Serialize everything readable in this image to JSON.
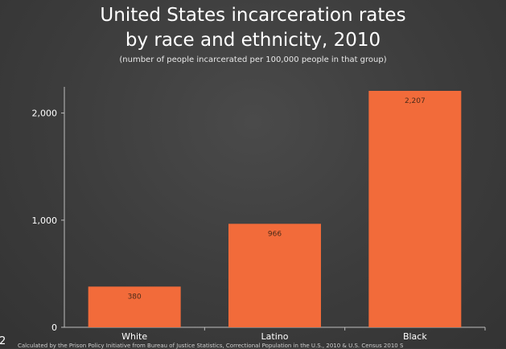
{
  "page_number": "2",
  "source_note": "Calculated by the Prison Policy Initiative from Bureau of Justice Statistics, Correctional Population in the U.S., 2010 & U.S. Census 2010 S",
  "colors": {
    "bar": "#f26b3a",
    "axis": "#bdbdbd",
    "background": "#3d3d3d"
  },
  "chart_data": {
    "type": "bar",
    "title_lines": [
      "United States incarceration rates",
      "by race and ethnicity, 2010"
    ],
    "subtitle": "(number of people incarcerated per 100,000 people in that group)",
    "categories": [
      "White",
      "Latino",
      "Black"
    ],
    "values": [
      380,
      966,
      2207
    ],
    "data_labels": [
      "380",
      "966",
      "2,207"
    ],
    "yticks": [
      0,
      1000,
      2000
    ],
    "ytick_labels": [
      "0",
      "1,000",
      "2,000"
    ],
    "ylim": [
      0,
      2207
    ],
    "grid": false,
    "legend": "none"
  }
}
